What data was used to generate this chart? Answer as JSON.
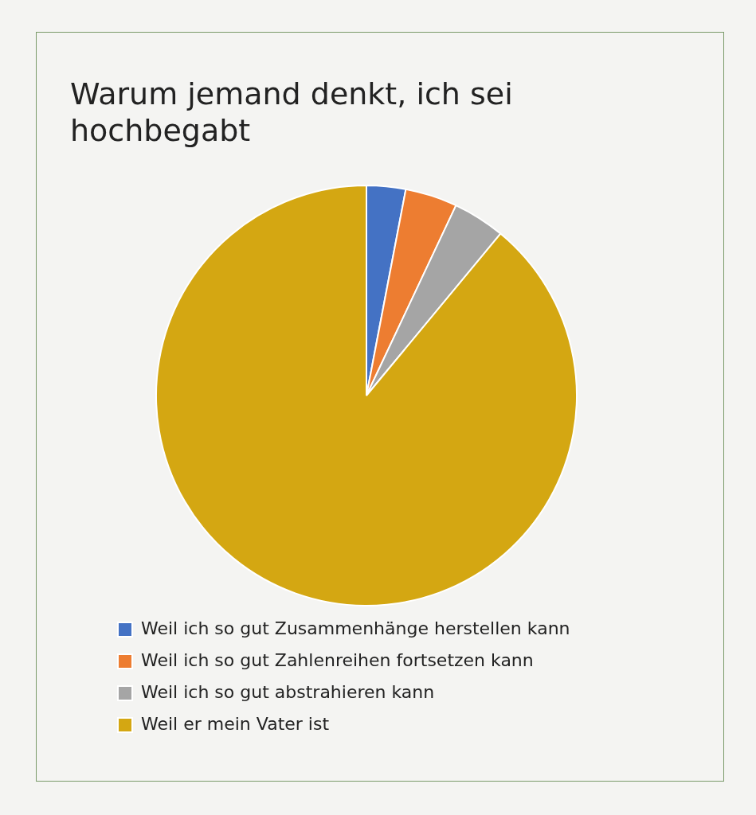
{
  "chart_data": {
    "type": "pie",
    "title": "Warum jemand denkt, ich sei hochbegabt",
    "categories": [
      "Weil ich so gut Zusammenhänge herstellen kann",
      "Weil ich so gut Zahlenreihen fortsetzen kann",
      "Weil ich so gut abstrahieren kann",
      "Weil er mein Vater ist"
    ],
    "values": [
      3,
      4,
      4,
      89
    ],
    "colors": [
      "#4472c4",
      "#ed7d31",
      "#a5a5a5",
      "#d4a712"
    ],
    "legend": "bottom"
  }
}
